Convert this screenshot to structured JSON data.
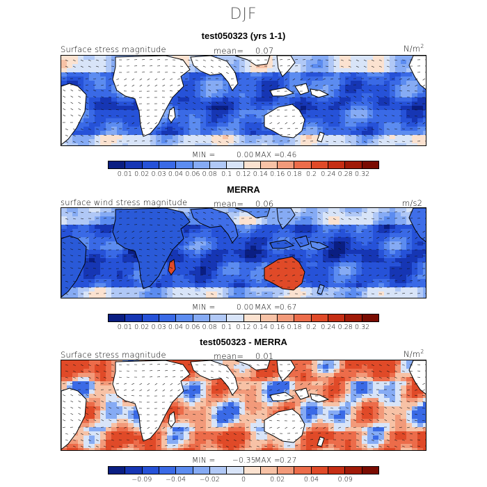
{
  "figure": {
    "season": "DJF"
  },
  "panels": [
    {
      "title": "test050323 (yrs 1-1)",
      "left_label": "Surface stress magnitude",
      "mean_label": "mean=",
      "mean_value": "0.07",
      "units_base": "N/m",
      "units_sup": "2",
      "min_label": "MIN =",
      "min_value": "0.00",
      "max_label": "MAX =",
      "max_value": "0.46",
      "field": "model"
    },
    {
      "title": "MERRA",
      "left_label": "surface wind stress magnitude",
      "mean_label": "mean=",
      "mean_value": "0.06",
      "units_base": "m/s2",
      "units_sup": "",
      "min_label": "MIN =",
      "min_value": "0.00",
      "max_label": "MAX =",
      "max_value": "0.67",
      "field": "obs"
    },
    {
      "title": "test050323 - MERRA",
      "left_label": "Surface stress magnitude",
      "mean_label": "mean=",
      "mean_value": "0.01",
      "units_base": "N/m",
      "units_sup": "2",
      "min_label": "MIN =",
      "min_value": "−0.35",
      "max_label": "MAX =",
      "max_value": "0.27",
      "field": "diff"
    }
  ],
  "colorbars": {
    "sequential": {
      "colors": [
        "#0a1e82",
        "#1636b4",
        "#2652d8",
        "#3a6ae6",
        "#5c8cf0",
        "#86abf4",
        "#b0c8f6",
        "#d8e4f8",
        "#fbe2d0",
        "#f7c2a6",
        "#f29a7a",
        "#ec6c4a",
        "#e04a28",
        "#c62e14",
        "#a01a08",
        "#7a0c02"
      ],
      "labels": [
        "0.01",
        "0.02",
        "0.03",
        "0.04",
        "0.06",
        "0.08",
        "0.1",
        "0.12",
        "0.14",
        "0.16",
        "0.18",
        "0.2",
        "0.24",
        "0.28",
        "0.32"
      ]
    },
    "diverging": {
      "colors": [
        "#0a1e82",
        "#1636b4",
        "#2652d8",
        "#3a6ae6",
        "#5c8cf0",
        "#86abf4",
        "#b0c8f6",
        "#d8e4f8",
        "#fbe2d0",
        "#f7c2a6",
        "#f29a7a",
        "#ec6c4a",
        "#e04a28",
        "#c62e14",
        "#a01a08",
        "#7a0c02"
      ],
      "labels": [
        "−0.09",
        "−0.04",
        "−0.02",
        "0",
        "0.02",
        "0.04",
        "0.09"
      ]
    }
  }
}
